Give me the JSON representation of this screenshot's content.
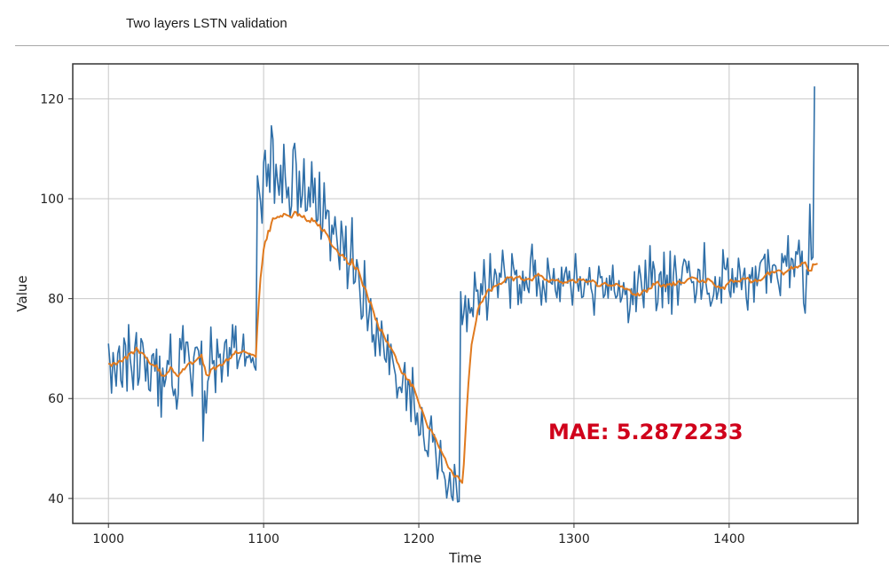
{
  "page": {
    "title": "Two layers LSTN validation"
  },
  "chart_data": {
    "type": "line",
    "xlabel": "Time",
    "ylabel": "Value",
    "xlim": [
      977,
      1483
    ],
    "ylim": [
      35,
      127
    ],
    "xticks": [
      1000,
      1100,
      1200,
      1300,
      1400
    ],
    "yticks": [
      40,
      60,
      80,
      100,
      120
    ],
    "grid": true,
    "annotation": "MAE: 5.2872233",
    "colors": {
      "actual": "#2f6fa8",
      "forecast": "#e07a1f",
      "annotation": "#d0021b"
    },
    "x_start": 1000,
    "x_step": 1,
    "series": [
      {
        "key": "actual",
        "values": [
          71.0,
          67.1,
          61.1,
          69.2,
          65.9,
          62.5,
          69.0,
          70.5,
          63.6,
          62.3,
          72.1,
          70.7,
          61.5,
          74.8,
          67.9,
          65.4,
          61.8,
          70.3,
          73.2,
          62.7,
          64.3,
          72.0,
          71.2,
          68.5,
          63.5,
          68.2,
          61.8,
          61.5,
          68.6,
          69.0,
          65.5,
          69.9,
          58.5,
          68.5,
          56.3,
          66.1,
          62.4,
          64.0,
          67.6,
          66.8,
          72.9,
          62.6,
          60.6,
          61.9,
          57.9,
          61.0,
          72.0,
          69.8,
          74.6,
          67.1,
          71.3,
          71.3,
          68.1,
          64.3,
          60.5,
          68.3,
          70.2,
          70.3,
          69.6,
          66.8,
          71.5,
          51.5,
          61.5,
          57.1,
          63.4,
          64.6,
          74.3,
          67.0,
          67.6,
          61.2,
          71.9,
          68.2,
          68.9,
          63.3,
          67.8,
          71.2,
          71.8,
          64.5,
          70.2,
          68.5,
          74.8,
          70.2,
          74.5,
          66.0,
          67.6,
          68.5,
          69.3,
          72.9,
          66.5,
          68.4,
          68.2,
          69.0,
          67.2,
          68.2,
          66.4,
          65.7,
          104.6,
          102.0,
          99.5,
          95.1,
          107.3,
          109.7,
          102.5,
          106.9,
          101.3,
          114.6,
          111.9,
          99.1,
          106.9,
          103.4,
          100.7,
          106.7,
          99.2,
          110.9,
          104.2,
          100.2,
          102.3,
          96.4,
          98.6,
          109.8,
          111.1,
          106.8,
          96.6,
          105.5,
          98.3,
          100.7,
          108.0,
          97.5,
          97.7,
          102.3,
          98.4,
          107.4,
          99.2,
          104.1,
          95.3,
          95.8,
          105.3,
          91.9,
          94.4,
          103.2,
          96.0,
          97.7,
          97.5,
          87.6,
          94.7,
          92.9,
          96.4,
          92.7,
          89.3,
          85.8,
          95.5,
          92.4,
          87.7,
          94.5,
          82.0,
          86.2,
          88.2,
          96.2,
          83.0,
          83.4,
          87.8,
          86.0,
          81.5,
          75.9,
          76.6,
          87.6,
          79.5,
          73.6,
          77.0,
          80.0,
          71.3,
          72.8,
          68.5,
          76.1,
          72.2,
          68.6,
          75.5,
          71.6,
          68.0,
          67.3,
          72.8,
          64.8,
          70.9,
          68.2,
          66.3,
          64.7,
          60.1,
          62.2,
          62.3,
          61.2,
          64.9,
          67.2,
          57.6,
          63.6,
          62.6,
          55.4,
          66.2,
          59.0,
          54.8,
          57.1,
          52.6,
          52.8,
          58.2,
          52.6,
          49.6,
          49.6,
          48.4,
          54.1,
          56.5,
          51.3,
          52.8,
          48.9,
          43.9,
          47.1,
          51.6,
          45.5,
          45.1,
          43.7,
          40.1,
          42.4,
          45.2,
          40.5,
          39.6,
          46.8,
          43.3,
          39.3,
          39.4,
          81.4,
          74.8,
          77.1,
          80.6,
          73.4,
          80.0,
          77.1,
          78.2,
          76.4,
          85.3,
          81.5,
          81.7,
          76.8,
          83.0,
          80.8,
          87.8,
          82.0,
          75.7,
          80.3,
          89.0,
          81.5,
          82.5,
          85.9,
          84.7,
          80.2,
          85.1,
          84.3,
          89.7,
          86.2,
          83.2,
          84.2,
          84.1,
          78.1,
          89.0,
          86.4,
          84.8,
          85.7,
          78.8,
          82.8,
          79.1,
          85.5,
          81.6,
          84.3,
          82.2,
          81.2,
          87.8,
          90.9,
          84.5,
          87.7,
          80.5,
          84.5,
          82.3,
          78.7,
          83.6,
          81.5,
          79.3,
          88.1,
          85.3,
          83.2,
          82.9,
          86.0,
          81.7,
          80.2,
          84.0,
          79.4,
          86.3,
          82.5,
          85.0,
          86.3,
          83.1,
          85.5,
          82.3,
          78.7,
          83.7,
          89.0,
          83.5,
          81.5,
          84.4,
          80.2,
          80.4,
          83.2,
          83.9,
          82.8,
          86.2,
          82.1,
          80.8,
          76.7,
          83.0,
          82.9,
          86.5,
          84.2,
          84.4,
          80.2,
          80.8,
          84.1,
          80.1,
          84.6,
          81.7,
          86.7,
          81.5,
          80.1,
          80.6,
          83.6,
          79.3,
          80.3,
          83.2,
          80.8,
          81.8,
          75.2,
          77.8,
          82.0,
          78.8,
          85.4,
          77.4,
          82.8,
          86.6,
          84.4,
          81.3,
          78.2,
          87.7,
          81.5,
          82.2,
          90.6,
          82.2,
          87.4,
          85.7,
          77.6,
          79.2,
          84.8,
          85.4,
          78.2,
          89.3,
          81.4,
          84.7,
          79.0,
          89.5,
          76.9,
          84.4,
          88.6,
          84.5,
          78.7,
          83.9,
          82.8,
          86.4,
          87.9,
          87.4,
          85.2,
          87.5,
          84.2,
          83.2,
          83.4,
          79.2,
          81.3,
          85.9,
          85.7,
          79.9,
          82.6,
          91.2,
          83.2,
          80.9,
          81.1,
          78.5,
          79.5,
          80.8,
          84.4,
          79.9,
          81.5,
          84.3,
          79.1,
          89.8,
          86.1,
          85.8,
          88.1,
          81.6,
          80.3,
          86.0,
          81.2,
          84.2,
          82.3,
          88.1,
          85.5,
          81.8,
          84.5,
          86.1,
          80.3,
          77.7,
          84.8,
          84.0,
          86.2,
          79.3,
          86.5,
          82.6,
          84.6,
          87.1,
          87.7,
          88.0,
          88.9,
          81.1,
          89.8,
          86.2,
          83.2,
          86.6,
          86.8,
          86.5,
          84.3,
          82.6,
          80.6,
          89.0,
          87.2,
          88.6,
          86.5,
          92.6,
          82.2,
          88.1,
          87.8,
          84.4,
          89.4,
          88.9,
          91.7,
          86.5,
          89.5,
          79.1,
          77.1,
          85.8,
          84.8,
          98.9,
          87.8,
          88.3,
          122.5
        ]
      },
      {
        "key": "forecast",
        "values": [
          67.0,
          66.9,
          66.5,
          67.1,
          67.1,
          66.8,
          67.2,
          67.6,
          67.5,
          67.4,
          68.1,
          68.4,
          67.9,
          68.9,
          69.1,
          69.3,
          69.0,
          69.5,
          70.2,
          69.7,
          69.1,
          69.2,
          69.1,
          68.8,
          68.2,
          68.0,
          67.3,
          66.9,
          66.8,
          66.7,
          66.4,
          66.7,
          65.6,
          65.8,
          64.6,
          64.6,
          64.5,
          64.7,
          65.2,
          65.4,
          66.3,
          66.0,
          65.3,
          65.1,
          64.6,
          64.4,
          65.0,
          65.3,
          65.9,
          65.8,
          66.3,
          66.8,
          67.1,
          67.3,
          66.9,
          67.2,
          67.5,
          67.8,
          68.2,
          68.3,
          68.8,
          67.0,
          66.3,
          64.8,
          64.6,
          64.7,
          65.8,
          66.0,
          66.3,
          65.8,
          66.4,
          66.6,
          66.8,
          66.6,
          66.9,
          67.4,
          67.9,
          67.6,
          68.0,
          68.1,
          68.8,
          68.9,
          69.5,
          69.1,
          69.1,
          69.2,
          69.3,
          69.6,
          69.3,
          69.2,
          69.0,
          69.0,
          68.8,
          68.8,
          68.6,
          68.3,
          74.5,
          79.7,
          84.1,
          86.8,
          89.8,
          91.4,
          91.9,
          93.6,
          93.5,
          95.1,
          96.1,
          96.0,
          96.1,
          96.4,
          96.3,
          96.6,
          96.4,
          97.0,
          96.9,
          96.7,
          96.6,
          96.4,
          96.2,
          96.8,
          97.4,
          97.3,
          96.6,
          96.9,
          96.5,
          96.3,
          96.6,
          95.9,
          95.5,
          95.6,
          95.3,
          96.1,
          95.5,
          95.6,
          95.1,
          94.6,
          94.8,
          93.9,
          93.5,
          93.8,
          93.2,
          92.8,
          92.2,
          91.2,
          90.6,
          90.3,
          90.0,
          89.8,
          89.2,
          88.6,
          88.7,
          88.8,
          88.1,
          88.1,
          87.1,
          86.9,
          86.8,
          87.9,
          86.6,
          85.9,
          86.2,
          85.8,
          84.8,
          83.7,
          82.5,
          82.4,
          81.7,
          80.4,
          79.3,
          79.3,
          78.2,
          77.2,
          75.9,
          75.5,
          74.3,
          73.6,
          73.8,
          73.0,
          72.2,
          71.4,
          71.3,
          70.4,
          70.2,
          69.6,
          69.1,
          68.4,
          67.3,
          66.8,
          65.9,
          65.1,
          64.9,
          64.9,
          63.9,
          63.8,
          63.7,
          62.5,
          62.8,
          62.0,
          61.0,
          60.1,
          59.1,
          58.2,
          57.8,
          56.9,
          56.0,
          55.0,
          54.1,
          53.9,
          53.7,
          53.0,
          52.5,
          51.9,
          51.0,
          50.2,
          49.8,
          49.1,
          48.5,
          48.0,
          47.0,
          46.2,
          45.9,
          45.6,
          44.9,
          44.3,
          44.5,
          44.5,
          44.0,
          43.5,
          43.1,
          46.8,
          52.5,
          58.2,
          63.1,
          67.1,
          70.8,
          72.4,
          74.0,
          75.6,
          77.7,
          78.6,
          79.2,
          79.4,
          80.2,
          80.6,
          81.5,
          81.9,
          81.6,
          81.6,
          82.4,
          82.5,
          82.6,
          82.8,
          83.0,
          82.9,
          83.2,
          83.4,
          84.0,
          84.3,
          84.2,
          84.3,
          84.3,
          83.6,
          84.1,
          84.3,
          84.3,
          84.5,
          83.9,
          83.8,
          83.6,
          83.9,
          83.9,
          84.0,
          83.8,
          83.6,
          84.1,
          84.6,
          84.6,
          85.0,
          84.6,
          84.6,
          84.3,
          83.8,
          83.8,
          83.6,
          83.3,
          83.7,
          83.8,
          83.7,
          83.6,
          83.8,
          83.6,
          83.3,
          83.3,
          83.0,
          83.3,
          83.2,
          83.4,
          83.6,
          83.6,
          83.8,
          83.6,
          83.2,
          83.3,
          83.9,
          83.9,
          83.7,
          83.9,
          83.6,
          83.3,
          83.4,
          83.5,
          83.4,
          83.7,
          83.5,
          83.2,
          82.5,
          82.5,
          82.5,
          82.9,
          83.0,
          83.2,
          82.9,
          82.6,
          82.7,
          82.5,
          82.7,
          82.6,
          83.0,
          82.9,
          82.6,
          82.4,
          82.5,
          82.1,
          81.9,
          82.0,
          81.8,
          81.8,
          81.1,
          80.8,
          80.9,
          80.6,
          81.1,
          80.6,
          80.8,
          81.4,
          81.7,
          81.6,
          81.3,
          82.0,
          82.0,
          82.1,
          83.0,
          82.8,
          83.2,
          83.4,
          82.8,
          82.4,
          82.6,
          82.8,
          82.3,
          82.9,
          82.8,
          83.0,
          82.6,
          83.3,
          82.7,
          82.9,
          83.4,
          83.5,
          83.1,
          83.2,
          83.1,
          83.4,
          83.8,
          84.0,
          84.1,
          84.3,
          84.2,
          84.1,
          84.0,
          83.5,
          83.3,
          83.5,
          83.7,
          83.3,
          83.2,
          84.0,
          83.9,
          83.6,
          83.4,
          82.9,
          82.5,
          82.3,
          82.5,
          82.2,
          82.1,
          82.3,
          81.9,
          82.7,
          83.0,
          83.3,
          83.8,
          83.6,
          83.3,
          83.6,
          83.4,
          83.5,
          83.4,
          83.9,
          84.1,
          83.9,
          84.0,
          84.2,
          83.8,
          83.2,
          83.4,
          83.5,
          83.8,
          83.4,
          83.7,
          83.6,
          83.8,
          84.1,
          84.5,
          84.9,
          85.3,
          84.8,
          85.3,
          85.4,
          85.2,
          85.4,
          85.6,
          85.7,
          85.6,
          85.3,
          84.8,
          85.2,
          85.4,
          85.7,
          85.8,
          86.4,
          86.0,
          86.2,
          86.4,
          86.2,
          86.5,
          86.7,
          87.2,
          87.1,
          87.3,
          86.5,
          85.6,
          85.6,
          85.6,
          86.9,
          86.8,
          86.9,
          87.0
        ]
      }
    ]
  }
}
